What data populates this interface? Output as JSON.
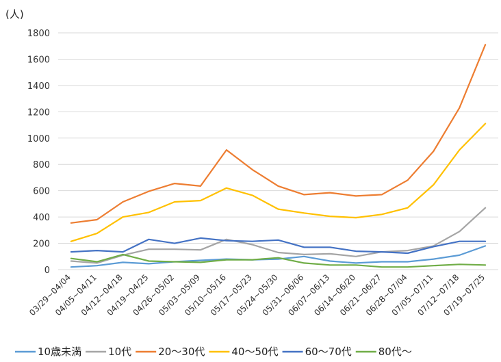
{
  "chart_data": {
    "type": "line",
    "title": "",
    "xlabel": "",
    "ylabel": "(人)",
    "ylim": [
      0,
      1800
    ],
    "yticks": [
      0,
      200,
      400,
      600,
      800,
      1000,
      1200,
      1400,
      1600,
      1800
    ],
    "grid": "horizontal",
    "legend_position": "bottom",
    "categories": [
      "03/29~04/04",
      "04/05~04/11",
      "04/12~04/18",
      "04/19~04/25",
      "04/26~05/02",
      "05/03~05/09",
      "05/10~05/16",
      "05/17~05/23",
      "05/24~05/30",
      "05/31~06/06",
      "06/07~06/13",
      "06/14~06/20",
      "06/21~06/27",
      "06/28~07/04",
      "07/05~07/11",
      "07/12~07/18",
      "07/19~07/25"
    ],
    "series": [
      {
        "name": "10歳未満",
        "color": "#5B9BD5",
        "values": [
          20,
          30,
          55,
          45,
          60,
          70,
          80,
          75,
          80,
          100,
          65,
          50,
          60,
          60,
          80,
          110,
          180
        ]
      },
      {
        "name": "10代",
        "color": "#A5A5A5",
        "values": [
          65,
          50,
          110,
          155,
          155,
          150,
          230,
          190,
          130,
          115,
          120,
          100,
          135,
          145,
          180,
          290,
          470
        ]
      },
      {
        "name": "20～30代",
        "color": "#ED7D31",
        "values": [
          355,
          380,
          515,
          595,
          655,
          635,
          910,
          760,
          635,
          570,
          585,
          560,
          570,
          680,
          900,
          1230,
          1710
        ]
      },
      {
        "name": "40～50代",
        "color": "#FFC000",
        "values": [
          215,
          275,
          400,
          435,
          515,
          525,
          620,
          565,
          460,
          430,
          405,
          395,
          420,
          470,
          645,
          910,
          1110
        ]
      },
      {
        "name": "60～70代",
        "color": "#4472C4",
        "values": [
          135,
          145,
          135,
          230,
          200,
          240,
          220,
          215,
          225,
          170,
          170,
          140,
          135,
          125,
          175,
          215,
          215
        ]
      },
      {
        "name": "80代～",
        "color": "#70AD47",
        "values": [
          85,
          60,
          115,
          65,
          60,
          55,
          75,
          75,
          90,
          50,
          35,
          35,
          20,
          20,
          30,
          40,
          35
        ]
      }
    ]
  }
}
